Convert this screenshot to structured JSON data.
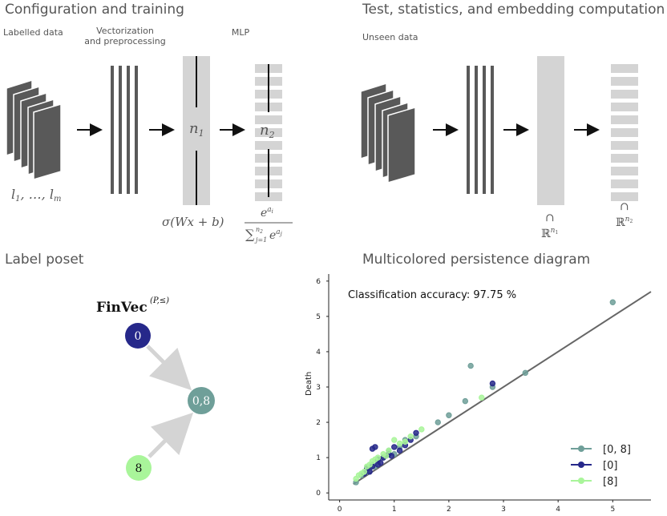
{
  "colors": {
    "dark_gray": "#595959",
    "light_gray": "#d4d4d4",
    "arrow": "#111111",
    "node_0": "#26288a",
    "node_08": "#6f9f99",
    "node_8": "#a9f59a",
    "diag_line": "#666666"
  },
  "top_left": {
    "title": "Configuration and training",
    "label_data": "Labelled data",
    "label_vectorization": "Vectorization",
    "label_preprocessing": "and preprocessing",
    "label_mlp": "MLP",
    "math_inputs": "l₁, …, lₘ",
    "n1": "n₁",
    "n2": "n₂",
    "activation": "σ(Wx + b)",
    "softmax_num": "e^{a_i}",
    "softmax_den": "∑_{j=1}^{n_2} e^{a_j}"
  },
  "top_right": {
    "title": "Test, statistics, and embedding computation",
    "label_data": "Unseen data",
    "embed1": "∩\nℝ^{n₁}",
    "embed2": "∩\nℝ^{n₂}"
  },
  "bottom_left": {
    "title": "Label poset",
    "finvec": "FinVec",
    "finvec_sup": "(P,≤)",
    "nodes": [
      {
        "id": "0",
        "label": "0"
      },
      {
        "id": "0,8",
        "label": "0,8"
      },
      {
        "id": "8",
        "label": "8"
      }
    ]
  },
  "bottom_right": {
    "title": "Multicolored persistence diagram",
    "accuracy_label": "Classification accuracy: 97.75 %",
    "legend": [
      "[0, 8]",
      "[0]",
      "[8]"
    ]
  },
  "chart_data": {
    "type": "scatter",
    "title": "",
    "xlabel": "",
    "ylabel": "Death",
    "xlim": [
      -0.2,
      5.7
    ],
    "ylim": [
      -0.2,
      6.2
    ],
    "x_ticks": [
      0,
      1,
      2,
      3,
      4,
      5
    ],
    "y_ticks": [
      0,
      1,
      2,
      3,
      4,
      5,
      6
    ],
    "grid": false,
    "legend_position": "bottom-right",
    "series": [
      {
        "name": "[0, 8]",
        "color": "#6f9f99",
        "points": [
          [
            5.0,
            5.4
          ],
          [
            2.4,
            3.6
          ],
          [
            3.4,
            3.4
          ],
          [
            2.8,
            3.0
          ],
          [
            2.3,
            2.6
          ],
          [
            2.0,
            2.2
          ],
          [
            1.8,
            2.0
          ],
          [
            1.4,
            1.6
          ],
          [
            1.2,
            1.5
          ],
          [
            0.9,
            1.2
          ],
          [
            0.8,
            1.0
          ],
          [
            0.7,
            0.9
          ],
          [
            0.6,
            0.8
          ],
          [
            0.5,
            0.6
          ],
          [
            0.4,
            0.5
          ],
          [
            0.3,
            0.3
          ],
          [
            1.0,
            1.1
          ],
          [
            1.1,
            1.3
          ],
          [
            0.55,
            0.7
          ],
          [
            0.65,
            0.75
          ]
        ]
      },
      {
        "name": "[0]",
        "color": "#26288a",
        "points": [
          [
            2.8,
            3.1
          ],
          [
            1.4,
            1.7
          ],
          [
            1.3,
            1.5
          ],
          [
            1.0,
            1.3
          ],
          [
            0.65,
            1.3
          ],
          [
            0.6,
            1.25
          ],
          [
            0.9,
            1.1
          ],
          [
            0.8,
            1.0
          ],
          [
            1.1,
            1.2
          ],
          [
            0.7,
            0.95
          ],
          [
            0.75,
            0.85
          ],
          [
            0.5,
            0.7
          ],
          [
            0.6,
            0.75
          ],
          [
            0.45,
            0.55
          ],
          [
            0.85,
            1.05
          ],
          [
            1.2,
            1.35
          ],
          [
            0.95,
            1.05
          ],
          [
            0.55,
            0.6
          ],
          [
            0.7,
            0.8
          ]
        ]
      },
      {
        "name": "[8]",
        "color": "#a9f59a",
        "points": [
          [
            1.0,
            1.5
          ],
          [
            1.5,
            1.8
          ],
          [
            1.3,
            1.6
          ],
          [
            1.1,
            1.4
          ],
          [
            0.7,
            1.0
          ],
          [
            0.6,
            0.9
          ],
          [
            0.9,
            1.2
          ],
          [
            0.45,
            0.6
          ],
          [
            0.35,
            0.5
          ],
          [
            0.5,
            0.75
          ],
          [
            0.8,
            1.1
          ],
          [
            0.3,
            0.4
          ],
          [
            1.2,
            1.45
          ],
          [
            0.55,
            0.8
          ],
          [
            0.4,
            0.55
          ],
          [
            0.65,
            0.95
          ],
          [
            2.6,
            2.7
          ],
          [
            0.85,
            1.05
          ]
        ]
      }
    ]
  }
}
